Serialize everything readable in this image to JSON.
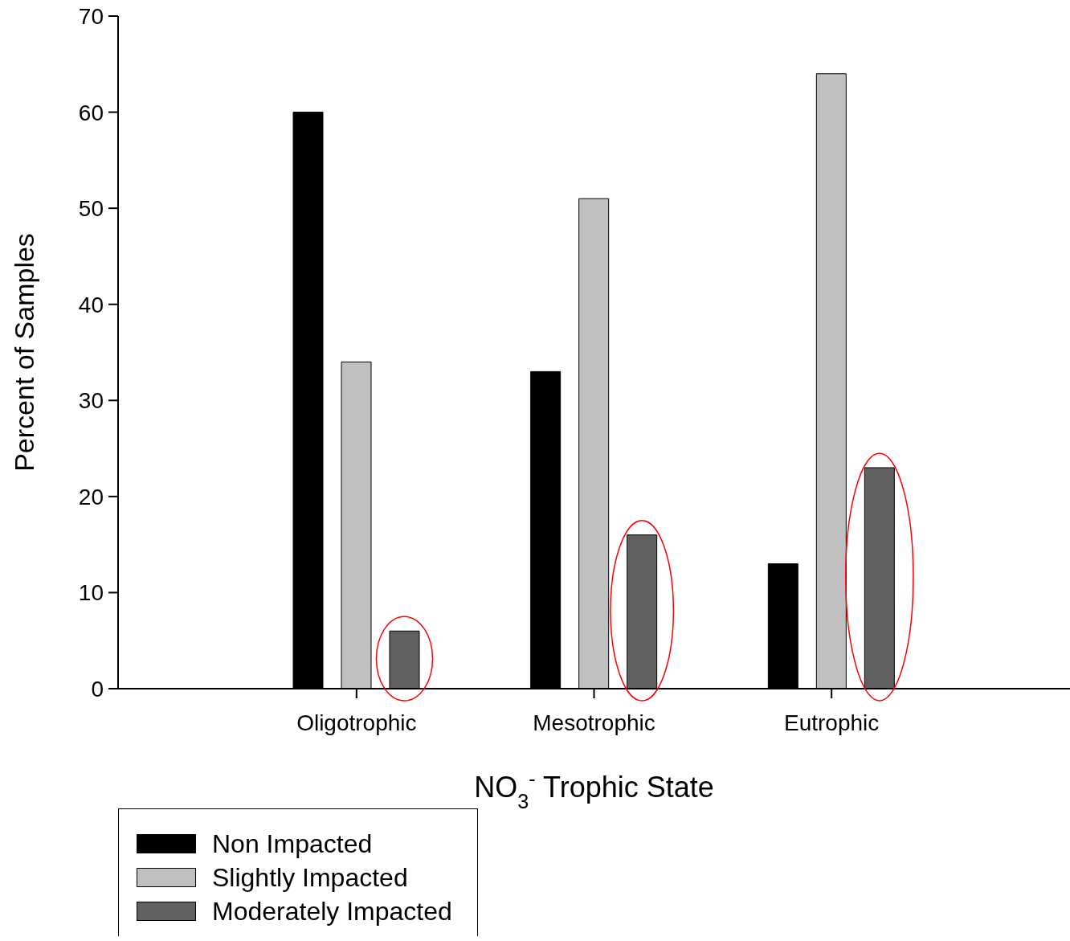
{
  "chart_data": {
    "type": "bar",
    "xlabel": "NO$_{3}$$^{-}$ Trophic State",
    "ylabel": "Percent of Samples",
    "categories": [
      "Oligotrophic",
      "Mesotrophic",
      "Eutrophic"
    ],
    "series": [
      {
        "name": "Non Impacted",
        "color": "#000000",
        "values": [
          60,
          33,
          13
        ]
      },
      {
        "name": "Slightly Impacted",
        "color": "#c0c0c0",
        "values": [
          34,
          51,
          64
        ]
      },
      {
        "name": "Moderately Impacted",
        "color": "#606060",
        "values": [
          6,
          16,
          23
        ]
      }
    ],
    "ylim": [
      0,
      70
    ],
    "yticks": [
      0,
      10,
      20,
      30,
      40,
      50,
      60,
      70
    ],
    "legend": "bottom left"
  }
}
